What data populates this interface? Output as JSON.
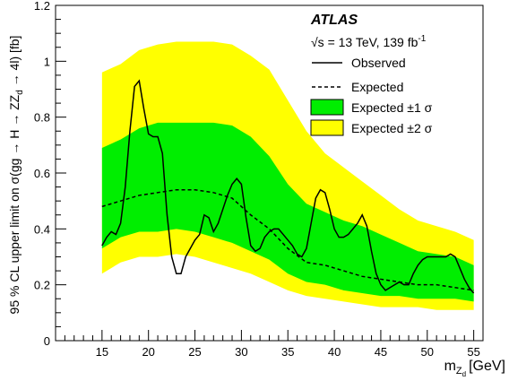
{
  "chart_data": {
    "type": "line",
    "experiment": "ATLAS",
    "energy_label_prefix": "√s = 13 TeV, 139 fb",
    "energy_label_sup": "-1",
    "xlabel_main": "m",
    "xlabel_sub1": "Z",
    "xlabel_sub2": "d",
    "xlabel_unit": "[GeV]",
    "ylabel_prefix": "95 % CL upper limit on σ(gg → H → ZZ",
    "ylabel_sub": "d",
    "ylabel_suffix": " → 4l) [fb]",
    "xlim": [
      10,
      56
    ],
    "ylim": [
      0,
      1.2
    ],
    "x_ticks": [
      15,
      20,
      25,
      30,
      35,
      40,
      45,
      50,
      55
    ],
    "y_ticks": [
      0,
      0.2,
      0.4,
      0.6,
      0.8,
      1,
      1.2
    ],
    "x_tick_labels": [
      "15",
      "20",
      "25",
      "30",
      "35",
      "40",
      "45",
      "50",
      "55"
    ],
    "y_tick_labels": [
      "0",
      "0.2",
      "0.4",
      "0.6",
      "0.8",
      "1",
      "1.2"
    ],
    "legend": {
      "observed": "Observed",
      "expected": "Expected",
      "band1": "Expected ±1 σ",
      "band2": "Expected ±2 σ"
    },
    "colors": {
      "band1": "#00ee00",
      "band2": "#ffff00",
      "line": "#000000"
    },
    "x": [
      15,
      17,
      19,
      21,
      23,
      25,
      27,
      29,
      31,
      33,
      35,
      37,
      39,
      41,
      43,
      45,
      47,
      49,
      51,
      53,
      55
    ],
    "band2_upper": [
      0.96,
      0.99,
      1.04,
      1.06,
      1.07,
      1.07,
      1.07,
      1.06,
      1.02,
      0.97,
      0.86,
      0.75,
      0.67,
      0.62,
      0.57,
      0.52,
      0.47,
      0.43,
      0.41,
      0.39,
      0.36
    ],
    "band1_upper": [
      0.69,
      0.72,
      0.76,
      0.78,
      0.78,
      0.78,
      0.78,
      0.77,
      0.73,
      0.66,
      0.56,
      0.49,
      0.46,
      0.43,
      0.41,
      0.38,
      0.35,
      0.32,
      0.31,
      0.3,
      0.27
    ],
    "expected": [
      0.48,
      0.5,
      0.52,
      0.53,
      0.54,
      0.54,
      0.53,
      0.51,
      0.45,
      0.4,
      0.33,
      0.28,
      0.27,
      0.25,
      0.23,
      0.22,
      0.21,
      0.2,
      0.2,
      0.19,
      0.18
    ],
    "band1_lower": [
      0.33,
      0.37,
      0.39,
      0.39,
      0.4,
      0.39,
      0.37,
      0.35,
      0.32,
      0.29,
      0.24,
      0.21,
      0.2,
      0.18,
      0.17,
      0.16,
      0.16,
      0.15,
      0.15,
      0.15,
      0.14
    ],
    "band2_lower": [
      0.24,
      0.28,
      0.3,
      0.3,
      0.31,
      0.3,
      0.28,
      0.26,
      0.24,
      0.21,
      0.18,
      0.16,
      0.15,
      0.14,
      0.13,
      0.12,
      0.12,
      0.12,
      0.11,
      0.11,
      0.11
    ],
    "observed_x": [
      15,
      15.5,
      16,
      16.5,
      17,
      17.5,
      18,
      18.5,
      19,
      19.5,
      20,
      20.5,
      21,
      21.5,
      22,
      22.5,
      23,
      23.5,
      24,
      24.5,
      25,
      25.5,
      26,
      26.5,
      27,
      27.5,
      28,
      28.5,
      29,
      29.5,
      30,
      30.5,
      31,
      31.5,
      32,
      32.5,
      33,
      33.5,
      34,
      34.5,
      35,
      35.5,
      36,
      36.5,
      37,
      37.5,
      38,
      38.5,
      39,
      39.5,
      40,
      40.5,
      41,
      41.5,
      42,
      42.5,
      43,
      43.5,
      44,
      44.5,
      45,
      45.5,
      46,
      46.5,
      47,
      47.5,
      48,
      48.5,
      49,
      49.5,
      50,
      50.5,
      51,
      51.5,
      52,
      52.5,
      53,
      53.5,
      54,
      54.5,
      55
    ],
    "observed_y": [
      0.34,
      0.37,
      0.39,
      0.38,
      0.42,
      0.55,
      0.75,
      0.91,
      0.93,
      0.83,
      0.74,
      0.73,
      0.73,
      0.67,
      0.45,
      0.3,
      0.24,
      0.24,
      0.3,
      0.33,
      0.36,
      0.38,
      0.45,
      0.44,
      0.39,
      0.42,
      0.47,
      0.52,
      0.56,
      0.58,
      0.56,
      0.44,
      0.34,
      0.32,
      0.33,
      0.37,
      0.39,
      0.4,
      0.4,
      0.38,
      0.36,
      0.34,
      0.31,
      0.3,
      0.33,
      0.42,
      0.51,
      0.54,
      0.53,
      0.47,
      0.4,
      0.37,
      0.37,
      0.38,
      0.4,
      0.42,
      0.45,
      0.41,
      0.32,
      0.24,
      0.2,
      0.18,
      0.19,
      0.2,
      0.21,
      0.2,
      0.2,
      0.24,
      0.27,
      0.29,
      0.3,
      0.3,
      0.3,
      0.3,
      0.3,
      0.31,
      0.3,
      0.26,
      0.22,
      0.19,
      0.17
    ]
  }
}
